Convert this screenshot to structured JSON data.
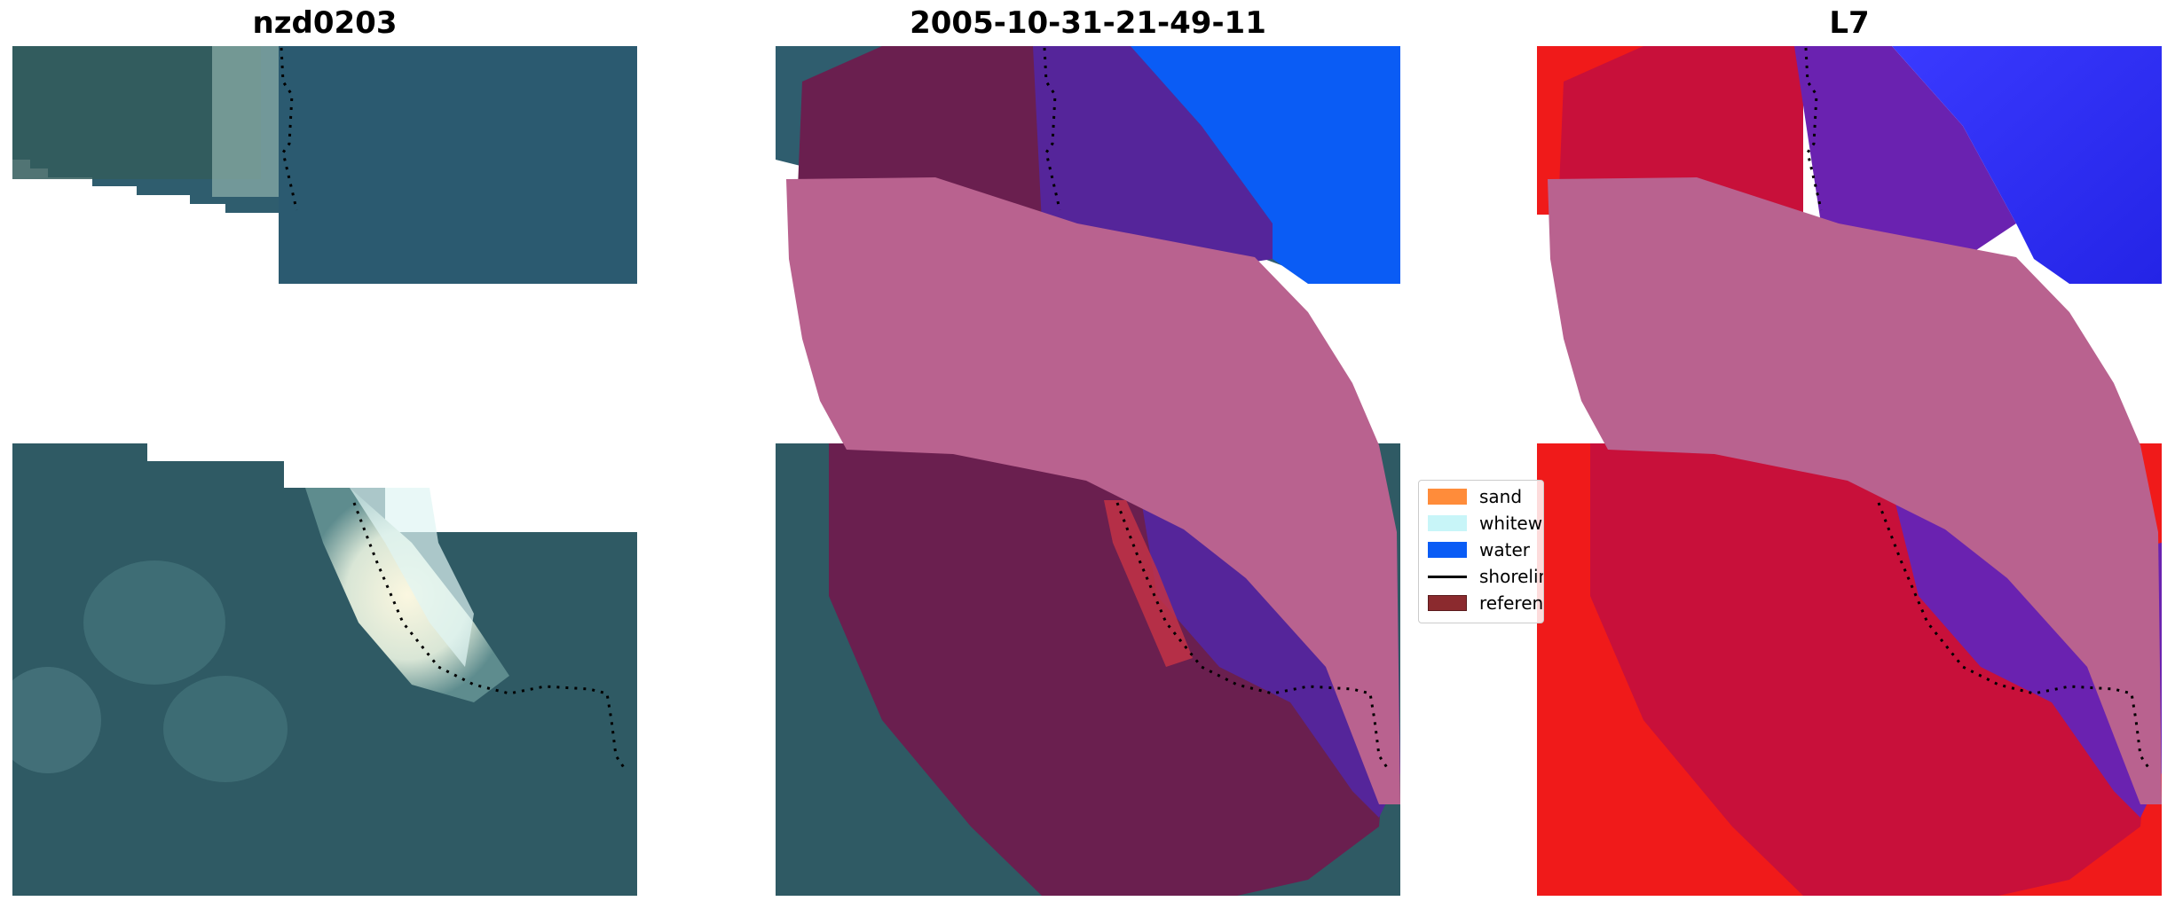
{
  "panels": [
    {
      "title": "nzd0203"
    },
    {
      "title": "2005-10-31-21-49-11"
    },
    {
      "title": "L7"
    }
  ],
  "legend": {
    "items": [
      {
        "label": "sand",
        "type": "patch",
        "color": "#ff8c3a"
      },
      {
        "label": "whitewater",
        "type": "patch",
        "color": "#c8f5f8"
      },
      {
        "label": "water",
        "type": "patch",
        "color": "#0a5cf5"
      },
      {
        "label": "shoreline",
        "type": "line",
        "color": "#000000"
      },
      {
        "label": "reference",
        "type": "patch",
        "color": "#8b2a2e"
      }
    ]
  },
  "colors": {
    "ocean": "#2e5a6b",
    "land": "#2f5a5a",
    "beach": "#e8ead8",
    "sand_class": "#c0185a",
    "water_class": "#0a5cf5",
    "buffer": "#b9628f",
    "l7_red": "#f01a1a",
    "l7_blue": "#2a2af2"
  }
}
